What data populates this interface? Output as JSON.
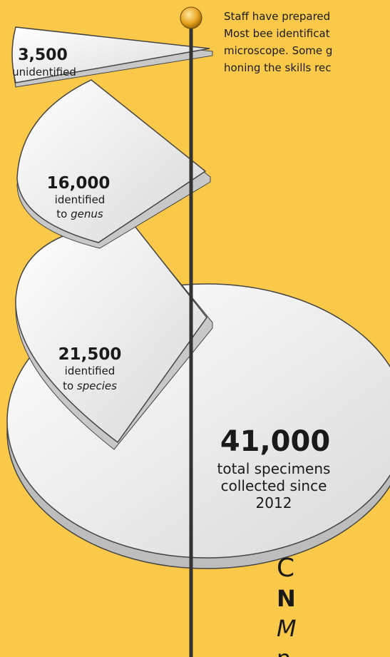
{
  "notes": {
    "lines": [
      "Staff have prepared",
      "Most bee identificat",
      "microscope. Some g",
      "honing the skills rec"
    ]
  },
  "unidentified": {
    "value": "3,500",
    "label": "unidentified"
  },
  "genus": {
    "value": "16,000",
    "line1": "identified",
    "prefix": "to",
    "em": "genus"
  },
  "species": {
    "value": "21,500",
    "line1": "identified",
    "prefix": "to",
    "em": "species"
  },
  "total": {
    "value": "41,000",
    "lines": [
      "total specimens",
      "collected since",
      "2012"
    ]
  },
  "footer": {
    "lines": [
      "C",
      "N",
      "M",
      "n"
    ]
  }
}
